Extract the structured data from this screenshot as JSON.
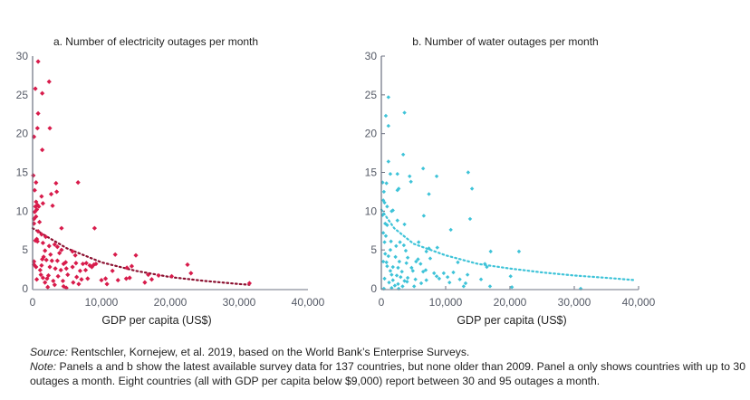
{
  "chart_data": [
    {
      "type": "scatter",
      "title": "a. Number of electricity outages per month",
      "xlabel": "GDP per capita (US$)",
      "ylabel": "",
      "xlim": [
        0,
        40000
      ],
      "ylim": [
        0,
        30
      ],
      "xticks": [
        "0",
        "10,000",
        "20,000",
        "30,000",
        "40,000"
      ],
      "yticks": [
        "0",
        "5",
        "10",
        "15",
        "20",
        "25",
        "30"
      ],
      "grid": false,
      "color": "#d81b4b",
      "trend_color": "#8b1030",
      "trend": {
        "type": "dotted-exponential",
        "points": [
          [
            0,
            7.8
          ],
          [
            5000,
            5.2
          ],
          [
            10000,
            3.4
          ],
          [
            15000,
            2.3
          ],
          [
            20000,
            1.5
          ],
          [
            25000,
            1.0
          ],
          [
            30000,
            0.6
          ],
          [
            31500,
            0.5
          ]
        ]
      },
      "points": [
        [
          800,
          29.3
        ],
        [
          2400,
          26.7
        ],
        [
          400,
          25.8
        ],
        [
          1400,
          25.2
        ],
        [
          800,
          22.6
        ],
        [
          700,
          20.7
        ],
        [
          2500,
          20.7
        ],
        [
          200,
          19.6
        ],
        [
          1400,
          17.9
        ],
        [
          100,
          14.6
        ],
        [
          500,
          13.7
        ],
        [
          3400,
          13.6
        ],
        [
          6600,
          13.7
        ],
        [
          300,
          12.7
        ],
        [
          3500,
          12.5
        ],
        [
          2700,
          12.2
        ],
        [
          1300,
          11.9
        ],
        [
          500,
          11.2
        ],
        [
          700,
          10.8
        ],
        [
          400,
          10.6
        ],
        [
          900,
          10.6
        ],
        [
          2900,
          10.7
        ],
        [
          1500,
          11.0
        ],
        [
          600,
          10.2
        ],
        [
          300,
          9.9
        ],
        [
          500,
          9.3
        ],
        [
          200,
          9.0
        ],
        [
          1000,
          8.6
        ],
        [
          200,
          8.4
        ],
        [
          4200,
          7.8
        ],
        [
          9000,
          7.8
        ],
        [
          800,
          7.4
        ],
        [
          1300,
          7.0
        ],
        [
          1900,
          6.7
        ],
        [
          600,
          6.4
        ],
        [
          700,
          6.1
        ],
        [
          1500,
          5.9
        ],
        [
          3200,
          5.7
        ],
        [
          3600,
          5.4
        ],
        [
          2400,
          5.5
        ],
        [
          4200,
          5.0
        ],
        [
          5800,
          4.8
        ],
        [
          1800,
          4.9
        ],
        [
          2600,
          4.4
        ],
        [
          6200,
          4.3
        ],
        [
          1600,
          4.1
        ],
        [
          3900,
          4.6
        ],
        [
          12000,
          4.4
        ],
        [
          15000,
          4.3
        ],
        [
          200,
          3.5
        ],
        [
          1400,
          3.8
        ],
        [
          2000,
          3.7
        ],
        [
          2800,
          3.6
        ],
        [
          3600,
          3.6
        ],
        [
          4500,
          3.2
        ],
        [
          4800,
          3.4
        ],
        [
          6300,
          3.3
        ],
        [
          7300,
          3.2
        ],
        [
          7800,
          3.3
        ],
        [
          8300,
          3.0
        ],
        [
          8900,
          3.1
        ],
        [
          9200,
          3.2
        ],
        [
          500,
          2.8
        ],
        [
          1300,
          3.0
        ],
        [
          2500,
          2.8
        ],
        [
          3300,
          2.6
        ],
        [
          4100,
          2.4
        ],
        [
          4900,
          2.6
        ],
        [
          5800,
          2.8
        ],
        [
          6900,
          2.3
        ],
        [
          7700,
          2.4
        ],
        [
          8600,
          2.8
        ],
        [
          11600,
          2.3
        ],
        [
          13700,
          2.7
        ],
        [
          14400,
          2.9
        ],
        [
          22500,
          3.1
        ],
        [
          23000,
          2.0
        ],
        [
          1200,
          1.8
        ],
        [
          2300,
          1.7
        ],
        [
          3700,
          1.6
        ],
        [
          5100,
          1.8
        ],
        [
          6400,
          1.5
        ],
        [
          7100,
          1.2
        ],
        [
          8000,
          1.3
        ],
        [
          10000,
          1.1
        ],
        [
          10600,
          1.3
        ],
        [
          12400,
          1.1
        ],
        [
          13600,
          1.3
        ],
        [
          14100,
          1.4
        ],
        [
          16800,
          1.8
        ],
        [
          17300,
          1.2
        ],
        [
          18300,
          1.7
        ],
        [
          20200,
          1.6
        ],
        [
          2100,
          1.3
        ],
        [
          3000,
          1.0
        ],
        [
          4400,
          1.0
        ],
        [
          600,
          1.2
        ],
        [
          1500,
          1.4
        ],
        [
          1800,
          0.8
        ],
        [
          3200,
          0.5
        ],
        [
          4500,
          0.3
        ],
        [
          5900,
          0.8
        ],
        [
          6700,
          0.6
        ],
        [
          10800,
          0.6
        ],
        [
          16300,
          0.8
        ],
        [
          31500,
          0.7
        ],
        [
          2200,
          0.2
        ],
        [
          4900,
          0.1
        ],
        [
          200,
          3.1
        ],
        [
          1100,
          2.4
        ],
        [
          400,
          6.2
        ]
      ]
    },
    {
      "type": "scatter",
      "title": "b. Number of water outages per month",
      "xlabel": "GDP per capita (US$)",
      "ylabel": "",
      "xlim": [
        0,
        40000
      ],
      "ylim": [
        0,
        30
      ],
      "xticks": [
        "0",
        "10,000",
        "20,000",
        "30,000",
        "40,000"
      ],
      "yticks": [
        "0",
        "5",
        "10",
        "15",
        "20",
        "25",
        "30"
      ],
      "grid": false,
      "color": "#3ec3d8",
      "trend_color": "#3ec3d8",
      "trend": {
        "type": "dotted-exponential",
        "points": [
          [
            0,
            10.2
          ],
          [
            2000,
            7.8
          ],
          [
            5000,
            5.8
          ],
          [
            10000,
            4.3
          ],
          [
            15000,
            3.2
          ],
          [
            20000,
            2.6
          ],
          [
            25000,
            2.1
          ],
          [
            30000,
            1.7
          ],
          [
            35000,
            1.4
          ],
          [
            39500,
            1.1
          ]
        ]
      },
      "points": [
        [
          1100,
          24.7
        ],
        [
          3600,
          22.7
        ],
        [
          700,
          22.3
        ],
        [
          1100,
          21.0
        ],
        [
          3400,
          17.3
        ],
        [
          1100,
          16.4
        ],
        [
          1400,
          14.8
        ],
        [
          2500,
          14.8
        ],
        [
          4400,
          14.5
        ],
        [
          6500,
          15.5
        ],
        [
          8600,
          14.5
        ],
        [
          13500,
          15.0
        ],
        [
          14100,
          12.9
        ],
        [
          200,
          13.7
        ],
        [
          800,
          13.6
        ],
        [
          400,
          12.5
        ],
        [
          2500,
          12.7
        ],
        [
          2700,
          12.9
        ],
        [
          4600,
          13.8
        ],
        [
          7400,
          12.2
        ],
        [
          300,
          11.4
        ],
        [
          500,
          11.1
        ],
        [
          900,
          10.6
        ],
        [
          1600,
          10.0
        ],
        [
          1800,
          10.1
        ],
        [
          6600,
          9.4
        ],
        [
          13800,
          9.0
        ],
        [
          200,
          9.5
        ],
        [
          600,
          8.4
        ],
        [
          900,
          8.2
        ],
        [
          2500,
          8.8
        ],
        [
          3600,
          8.3
        ],
        [
          10800,
          7.6
        ],
        [
          300,
          7.2
        ],
        [
          700,
          6.8
        ],
        [
          500,
          6.0
        ],
        [
          1500,
          6.1
        ],
        [
          2900,
          6.0
        ],
        [
          5800,
          6.0
        ],
        [
          3500,
          5.6
        ],
        [
          2300,
          5.5
        ],
        [
          7400,
          5.2
        ],
        [
          8700,
          5.3
        ],
        [
          1400,
          5.0
        ],
        [
          3800,
          4.9
        ],
        [
          7000,
          4.8
        ],
        [
          17000,
          4.8
        ],
        [
          21400,
          4.8
        ],
        [
          600,
          4.5
        ],
        [
          1100,
          4.2
        ],
        [
          2200,
          4.1
        ],
        [
          4100,
          4.0
        ],
        [
          5700,
          3.8
        ],
        [
          7600,
          3.9
        ],
        [
          300,
          3.5
        ],
        [
          800,
          3.4
        ],
        [
          2800,
          3.5
        ],
        [
          3900,
          3.3
        ],
        [
          5400,
          3.5
        ],
        [
          6100,
          3.2
        ],
        [
          11900,
          3.4
        ],
        [
          16100,
          3.2
        ],
        [
          900,
          2.9
        ],
        [
          1800,
          2.8
        ],
        [
          2600,
          2.7
        ],
        [
          4700,
          2.7
        ],
        [
          6900,
          2.4
        ],
        [
          16400,
          2.8
        ],
        [
          1400,
          2.3
        ],
        [
          3200,
          2.2
        ],
        [
          4900,
          2.3
        ],
        [
          6500,
          2.2
        ],
        [
          8200,
          2.0
        ],
        [
          9700,
          2.0
        ],
        [
          11200,
          2.1
        ],
        [
          1600,
          1.8
        ],
        [
          2400,
          1.7
        ],
        [
          3000,
          1.5
        ],
        [
          4100,
          1.4
        ],
        [
          8600,
          1.6
        ],
        [
          10300,
          1.5
        ],
        [
          13400,
          1.8
        ],
        [
          500,
          1.3
        ],
        [
          1800,
          1.1
        ],
        [
          3600,
          1.0
        ],
        [
          5300,
          1.2
        ],
        [
          7000,
          1.1
        ],
        [
          9000,
          1.3
        ],
        [
          12200,
          1.2
        ],
        [
          15500,
          1.2
        ],
        [
          20100,
          1.6
        ],
        [
          1200,
          0.8
        ],
        [
          2600,
          0.6
        ],
        [
          4000,
          0.9
        ],
        [
          6200,
          0.7
        ],
        [
          10600,
          0.8
        ],
        [
          13100,
          0.7
        ],
        [
          2100,
          0.4
        ],
        [
          3300,
          0.3
        ],
        [
          5100,
          0.3
        ],
        [
          12800,
          0.3
        ],
        [
          16900,
          0.3
        ],
        [
          400,
          0.0
        ],
        [
          1600,
          0.1
        ],
        [
          2700,
          -0.2
        ],
        [
          31000,
          0.0
        ],
        [
          20300,
          0.2
        ]
      ]
    }
  ],
  "footer": {
    "source_label": "Source:",
    "source_text": " Rentschler, Kornejew, et al. 2019, based on the World Bank’s Enterprise Surveys.",
    "note_label": "Note:",
    "note_text": " Panels a and b show the latest available survey data for 137 countries, but none older than 2009. Panel a only shows countries with up to 30 outages a month. Eight countries (all with GDP per capita below $9,000) report between 30 and 95 outages a month."
  }
}
